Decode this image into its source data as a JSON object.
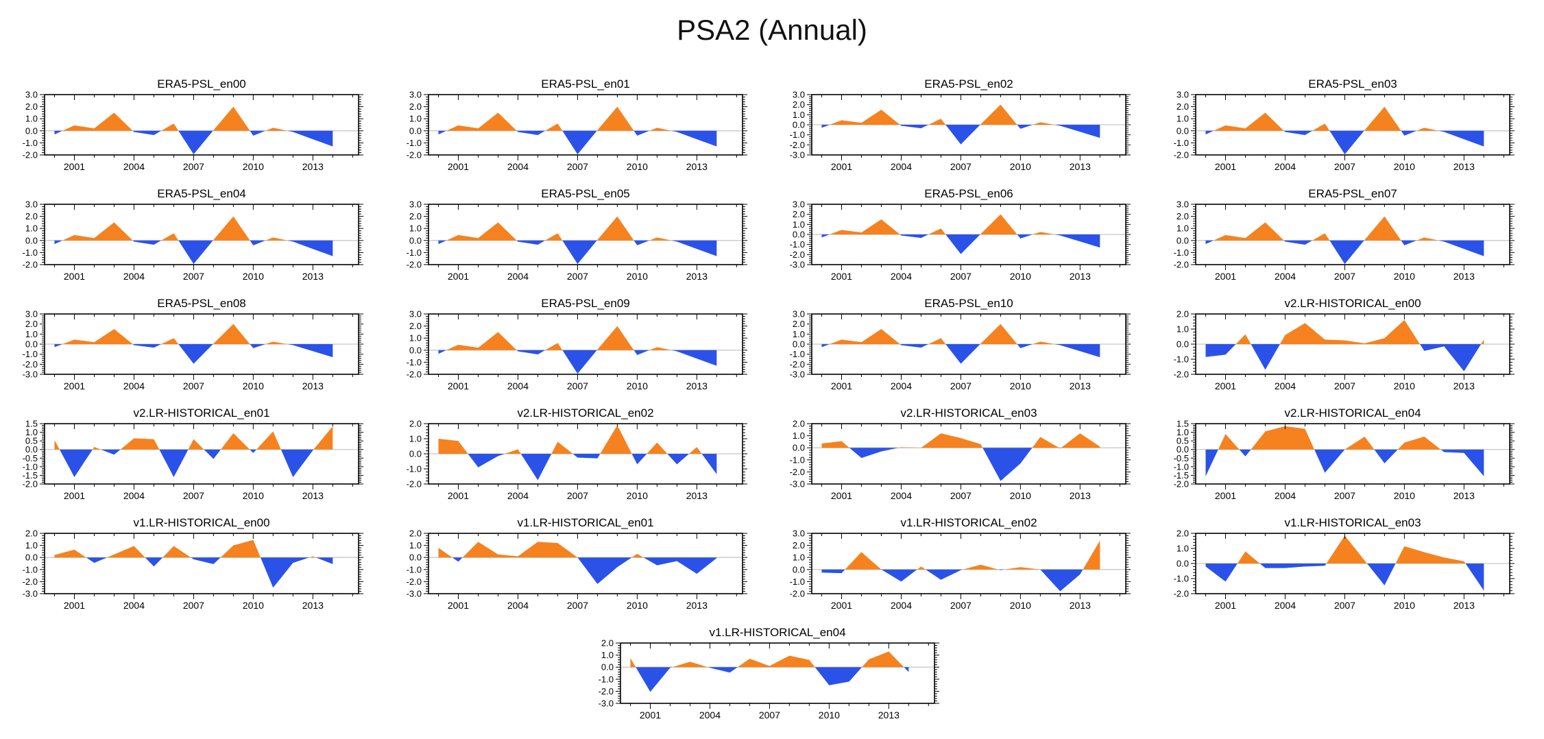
{
  "chart_data": {
    "type": "area",
    "title": "PSA2 (Annual)",
    "x": [
      2000,
      2001,
      2002,
      2003,
      2004,
      2005,
      2006,
      2007,
      2008,
      2009,
      2010,
      2011,
      2012,
      2013,
      2014
    ],
    "xlim": [
      1999.5,
      2015.3
    ],
    "x_major_ticks": [
      2001,
      2004,
      2007,
      2010,
      2013
    ],
    "x_minor_step": 1,
    "grid": "off",
    "legend": "none",
    "colors": {
      "positive_fill": "#F5821E",
      "negative_fill": "#2B52E8",
      "axis": "#000000",
      "zero_line": "#C8C8C8",
      "text": "#000000",
      "background": "#FFFFFF"
    },
    "layout": {
      "rows": [
        4,
        4,
        4,
        4,
        4,
        1
      ],
      "ylabel": "",
      "xlabel": ""
    },
    "panels": [
      {
        "title": "ERA5-PSL_en00",
        "ylim": [
          -2.0,
          3.0
        ],
        "ytick_step": 1.0,
        "values": [
          -0.3,
          0.45,
          0.2,
          1.5,
          -0.1,
          -0.35,
          0.6,
          -1.95,
          0.05,
          2.0,
          -0.4,
          0.25,
          -0.1,
          -0.7,
          -1.3
        ]
      },
      {
        "title": "ERA5-PSL_en01",
        "ylim": [
          -2.0,
          3.0
        ],
        "ytick_step": 1.0,
        "values": [
          -0.3,
          0.45,
          0.2,
          1.5,
          -0.1,
          -0.35,
          0.6,
          -1.95,
          0.05,
          2.0,
          -0.4,
          0.25,
          -0.1,
          -0.7,
          -1.3
        ]
      },
      {
        "title": "ERA5-PSL_en02",
        "ylim": [
          -3.0,
          3.0
        ],
        "ytick_step": 1.0,
        "values": [
          -0.3,
          0.45,
          0.2,
          1.5,
          -0.1,
          -0.35,
          0.6,
          -1.95,
          0.05,
          2.0,
          -0.4,
          0.25,
          -0.1,
          -0.7,
          -1.3
        ]
      },
      {
        "title": "ERA5-PSL_en03",
        "ylim": [
          -2.0,
          3.0
        ],
        "ytick_step": 1.0,
        "values": [
          -0.3,
          0.45,
          0.2,
          1.5,
          -0.1,
          -0.35,
          0.6,
          -1.95,
          0.05,
          2.0,
          -0.4,
          0.25,
          -0.1,
          -0.7,
          -1.3
        ]
      },
      {
        "title": "ERA5-PSL_en04",
        "ylim": [
          -2.0,
          3.0
        ],
        "ytick_step": 1.0,
        "values": [
          -0.3,
          0.45,
          0.2,
          1.5,
          -0.1,
          -0.35,
          0.6,
          -1.95,
          0.05,
          2.0,
          -0.4,
          0.25,
          -0.1,
          -0.7,
          -1.3
        ]
      },
      {
        "title": "ERA5-PSL_en05",
        "ylim": [
          -2.0,
          3.0
        ],
        "ytick_step": 1.0,
        "values": [
          -0.3,
          0.45,
          0.2,
          1.5,
          -0.1,
          -0.35,
          0.6,
          -1.95,
          0.05,
          2.0,
          -0.4,
          0.25,
          -0.1,
          -0.7,
          -1.3
        ]
      },
      {
        "title": "ERA5-PSL_en06",
        "ylim": [
          -3.0,
          3.0
        ],
        "ytick_step": 1.0,
        "values": [
          -0.3,
          0.45,
          0.2,
          1.5,
          -0.1,
          -0.35,
          0.6,
          -1.95,
          0.05,
          2.0,
          -0.4,
          0.25,
          -0.1,
          -0.7,
          -1.3
        ]
      },
      {
        "title": "ERA5-PSL_en07",
        "ylim": [
          -2.0,
          3.0
        ],
        "ytick_step": 1.0,
        "values": [
          -0.3,
          0.45,
          0.2,
          1.5,
          -0.1,
          -0.35,
          0.6,
          -1.95,
          0.05,
          2.0,
          -0.4,
          0.25,
          -0.1,
          -0.7,
          -1.3
        ]
      },
      {
        "title": "ERA5-PSL_en08",
        "ylim": [
          -3.0,
          3.0
        ],
        "ytick_step": 1.0,
        "values": [
          -0.3,
          0.45,
          0.2,
          1.5,
          -0.1,
          -0.35,
          0.6,
          -1.95,
          0.05,
          2.0,
          -0.4,
          0.25,
          -0.1,
          -0.7,
          -1.3
        ]
      },
      {
        "title": "ERA5-PSL_en09",
        "ylim": [
          -2.0,
          3.0
        ],
        "ytick_step": 1.0,
        "values": [
          -0.3,
          0.45,
          0.2,
          1.5,
          -0.1,
          -0.35,
          0.6,
          -1.95,
          0.05,
          2.0,
          -0.4,
          0.25,
          -0.1,
          -0.7,
          -1.3
        ]
      },
      {
        "title": "ERA5-PSL_en10",
        "ylim": [
          -3.0,
          3.0
        ],
        "ytick_step": 1.0,
        "values": [
          -0.3,
          0.45,
          0.2,
          1.5,
          -0.1,
          -0.35,
          0.6,
          -1.95,
          0.05,
          2.0,
          -0.4,
          0.25,
          -0.1,
          -0.7,
          -1.3
        ]
      },
      {
        "title": "v2.LR-HISTORICAL_en00",
        "ylim": [
          -2.0,
          2.0
        ],
        "ytick_step": 1.0,
        "values": [
          -0.85,
          -0.7,
          0.65,
          -1.7,
          0.6,
          1.4,
          0.3,
          0.25,
          0.05,
          0.4,
          1.6,
          -0.45,
          -0.15,
          -1.8,
          0.3
        ]
      },
      {
        "title": "v2.LR-HISTORICAL_en01",
        "ylim": [
          -2.0,
          1.5
        ],
        "ytick_step": 0.5,
        "values": [
          0.55,
          -1.6,
          0.15,
          -0.3,
          0.65,
          0.6,
          -1.6,
          0.6,
          -0.55,
          0.95,
          -0.2,
          1.05,
          -1.6,
          -0.05,
          1.35
        ]
      },
      {
        "title": "v2.LR-HISTORICAL_en02",
        "ylim": [
          -2.0,
          2.0
        ],
        "ytick_step": 1.0,
        "values": [
          1.0,
          0.85,
          -0.9,
          -0.15,
          0.3,
          -1.75,
          0.8,
          -0.25,
          -0.3,
          1.9,
          -0.7,
          0.75,
          -0.7,
          0.45,
          -1.35
        ]
      },
      {
        "title": "v2.LR-HISTORICAL_en03",
        "ylim": [
          -3.0,
          2.0
        ],
        "ytick_step": 1.0,
        "values": [
          0.35,
          0.55,
          -0.85,
          -0.3,
          0.05,
          0.0,
          1.2,
          0.8,
          0.3,
          -2.75,
          -1.3,
          0.9,
          -0.05,
          1.2,
          0.1
        ]
      },
      {
        "title": "v2.LR-HISTORICAL_en04",
        "ylim": [
          -2.0,
          1.5
        ],
        "ytick_step": 0.5,
        "values": [
          -1.55,
          0.9,
          -0.4,
          1.05,
          1.35,
          1.2,
          -1.35,
          0.0,
          0.75,
          -0.8,
          0.4,
          0.75,
          -0.15,
          -0.2,
          -1.55
        ]
      },
      {
        "title": "v1.LR-HISTORICAL_en00",
        "ylim": [
          -3.0,
          2.0
        ],
        "ytick_step": 1.0,
        "values": [
          0.2,
          0.65,
          -0.45,
          0.25,
          0.95,
          -0.75,
          0.95,
          -0.15,
          -0.55,
          1.0,
          1.45,
          -2.5,
          -0.45,
          0.1,
          -0.55
        ]
      },
      {
        "title": "v1.LR-HISTORICAL_en01",
        "ylim": [
          -3.0,
          2.0
        ],
        "ytick_step": 1.0,
        "values": [
          0.8,
          -0.35,
          1.3,
          0.25,
          0.1,
          1.3,
          1.2,
          0.0,
          -2.2,
          -0.8,
          0.3,
          -0.65,
          -0.3,
          -1.35,
          -0.05
        ]
      },
      {
        "title": "v1.LR-HISTORICAL_en02",
        "ylim": [
          -2.0,
          3.0
        ],
        "ytick_step": 1.0,
        "values": [
          -0.25,
          -0.3,
          1.45,
          0.0,
          -1.0,
          0.25,
          -0.85,
          -0.05,
          0.4,
          -0.05,
          0.2,
          0.0,
          -1.8,
          -0.4,
          2.4
        ]
      },
      {
        "title": "v1.LR-HISTORICAL_en03",
        "ylim": [
          -2.0,
          2.0
        ],
        "ytick_step": 1.0,
        "values": [
          -0.2,
          -1.2,
          0.8,
          -0.3,
          -0.3,
          -0.2,
          -0.15,
          1.85,
          0.2,
          -1.45,
          1.15,
          0.75,
          0.4,
          0.15,
          -1.8
        ]
      },
      {
        "title": "v1.LR-HISTORICAL_en04",
        "ylim": [
          -3.0,
          2.0
        ],
        "ytick_step": 1.0,
        "values": [
          0.75,
          -2.05,
          -0.05,
          0.45,
          -0.05,
          -0.45,
          0.7,
          0.1,
          0.95,
          0.6,
          -1.5,
          -1.2,
          0.65,
          1.3,
          -0.4
        ]
      }
    ]
  }
}
